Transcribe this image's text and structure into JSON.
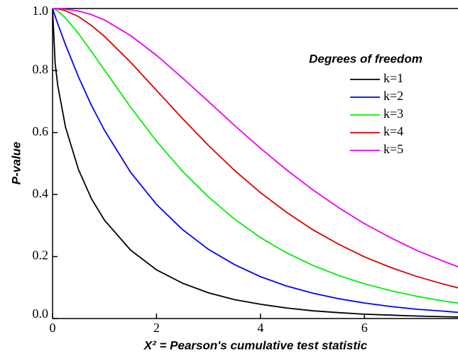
{
  "chart_data": {
    "type": "line",
    "xlabel": "Χ² = Pearson's cumulative test statistic",
    "ylabel": "P-value",
    "legend_title": "Degrees of freedom",
    "legend": "upper right",
    "x": [
      0,
      0.05,
      0.1,
      0.25,
      0.5,
      0.75,
      1,
      1.5,
      2,
      2.5,
      3,
      3.5,
      4,
      4.5,
      5,
      5.5,
      6,
      6.5,
      7,
      7.5,
      7.8
    ],
    "series": [
      {
        "name": "k=1",
        "color": "#000000",
        "values": [
          1,
          0.823,
          0.752,
          0.617,
          0.48,
          0.386,
          0.317,
          0.221,
          0.157,
          0.114,
          0.083,
          0.061,
          0.046,
          0.034,
          0.025,
          0.019,
          0.014,
          0.011,
          0.008,
          0.006,
          0.005
        ]
      },
      {
        "name": "k=2",
        "color": "#0000ff",
        "values": [
          1,
          0.975,
          0.951,
          0.883,
          0.779,
          0.687,
          0.607,
          0.472,
          0.368,
          0.287,
          0.223,
          0.174,
          0.135,
          0.105,
          0.082,
          0.064,
          0.05,
          0.039,
          0.03,
          0.024,
          0.02
        ]
      },
      {
        "name": "k=3",
        "color": "#00ee00",
        "values": [
          1,
          0.997,
          0.992,
          0.969,
          0.919,
          0.861,
          0.801,
          0.682,
          0.572,
          0.475,
          0.392,
          0.321,
          0.261,
          0.212,
          0.172,
          0.139,
          0.112,
          0.09,
          0.072,
          0.057,
          0.05
        ]
      },
      {
        "name": "k=4",
        "color": "#dd0000",
        "values": [
          1,
          1.0,
          0.999,
          0.993,
          0.974,
          0.945,
          0.91,
          0.827,
          0.736,
          0.645,
          0.558,
          0.478,
          0.406,
          0.343,
          0.287,
          0.24,
          0.199,
          0.165,
          0.136,
          0.112,
          0.099
        ]
      },
      {
        "name": "k=5",
        "color": "#ee00ee",
        "values": [
          1,
          1.0,
          1.0,
          0.998,
          0.992,
          0.98,
          0.963,
          0.913,
          0.849,
          0.776,
          0.7,
          0.623,
          0.549,
          0.48,
          0.416,
          0.358,
          0.306,
          0.261,
          0.22,
          0.186,
          0.167
        ]
      }
    ],
    "xlim": [
      0,
      7.8
    ],
    "ylim": [
      0,
      1
    ],
    "xticks": [
      0,
      2,
      4,
      6
    ],
    "yticks": [
      {
        "value": 0,
        "label": "0.0"
      },
      0.2,
      0.4,
      0.6,
      0.8,
      {
        "value": 1,
        "label": "1.0"
      }
    ]
  }
}
